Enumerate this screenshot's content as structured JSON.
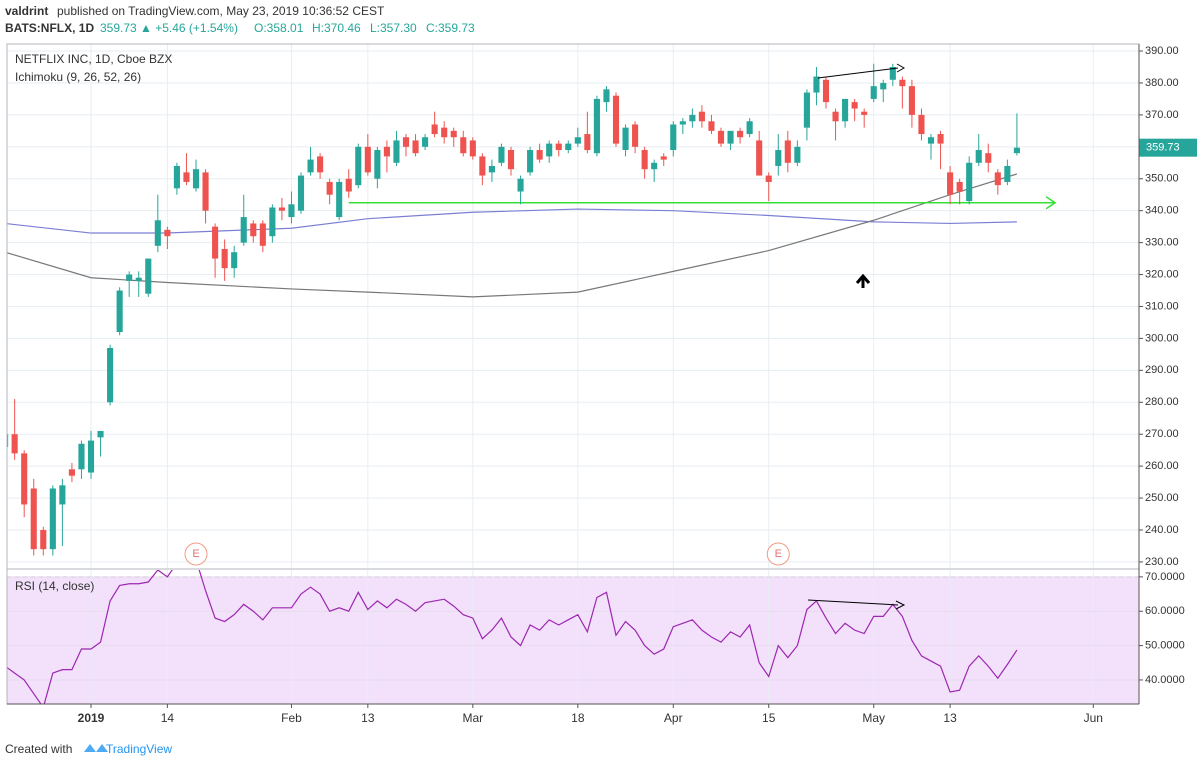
{
  "header": {
    "author": "valdrint",
    "published": "published on TradingView.com, May 23, 2019 10:36:52 CEST",
    "symbol": "BATS:NFLX, 1D",
    "last": "359.73",
    "change": "▲ +5.46 (+1.54%)",
    "ohlc": [
      "O:358.01",
      "H:370.46",
      "L:357.30",
      "C:359.73"
    ]
  },
  "footer": {
    "created": "Created with",
    "brand": "TradingView"
  },
  "chart_data": [
    {
      "type": "candlestick",
      "title": "NETFLIX INC, 1D, Cboe BZX",
      "indicator": "Ichimoku (9, 26, 52, 26)",
      "up_color": "#26a69a",
      "down_color": "#ef5350",
      "grid": true,
      "x": [
        "2018-12-18",
        "2018-12-19",
        "2018-12-20",
        "2018-12-21",
        "2018-12-24",
        "2018-12-26",
        "2018-12-27",
        "2018-12-28",
        "2018-12-31",
        "2019-01-02",
        "2019-01-03",
        "2019-01-04",
        "2019-01-07",
        "2019-01-08",
        "2019-01-09",
        "2019-01-10",
        "2019-01-11",
        "2019-01-14",
        "2019-01-15",
        "2019-01-16",
        "2019-01-17",
        "2019-01-18",
        "2019-01-22",
        "2019-01-23",
        "2019-01-24",
        "2019-01-25",
        "2019-01-28",
        "2019-01-29",
        "2019-01-30",
        "2019-01-31",
        "2019-02-01",
        "2019-02-04",
        "2019-02-05",
        "2019-02-06",
        "2019-02-07",
        "2019-02-08",
        "2019-02-11",
        "2019-02-12",
        "2019-02-13",
        "2019-02-14",
        "2019-02-15",
        "2019-02-19",
        "2019-02-20",
        "2019-02-21",
        "2019-02-22",
        "2019-02-25",
        "2019-02-26",
        "2019-02-27",
        "2019-02-28",
        "2019-03-01",
        "2019-03-04",
        "2019-03-05",
        "2019-03-06",
        "2019-03-07",
        "2019-03-08",
        "2019-03-11",
        "2019-03-12",
        "2019-03-13",
        "2019-03-14",
        "2019-03-15",
        "2019-03-18",
        "2019-03-19",
        "2019-03-20",
        "2019-03-21",
        "2019-03-22",
        "2019-03-25",
        "2019-03-26",
        "2019-03-27",
        "2019-03-28",
        "2019-03-29",
        "2019-04-01",
        "2019-04-02",
        "2019-04-03",
        "2019-04-04",
        "2019-04-05",
        "2019-04-08",
        "2019-04-09",
        "2019-04-10",
        "2019-04-11",
        "2019-04-12",
        "2019-04-15",
        "2019-04-16",
        "2019-04-17",
        "2019-04-18",
        "2019-04-22",
        "2019-04-23",
        "2019-04-24",
        "2019-04-25",
        "2019-04-26",
        "2019-04-29",
        "2019-04-30",
        "2019-05-01",
        "2019-05-02",
        "2019-05-03",
        "2019-05-06",
        "2019-05-07",
        "2019-05-08",
        "2019-05-09",
        "2019-05-10",
        "2019-05-13",
        "2019-05-14",
        "2019-05-15",
        "2019-05-16",
        "2019-05-17",
        "2019-05-20",
        "2019-05-21",
        "2019-05-22"
      ],
      "open": [
        266,
        270,
        264,
        253,
        240,
        234,
        248,
        259,
        259,
        258,
        269,
        280,
        302,
        318,
        318,
        314,
        329,
        334,
        347,
        352,
        347,
        352,
        335,
        328,
        322,
        330,
        336,
        336,
        332,
        341,
        338,
        340,
        352,
        357,
        349,
        338,
        350,
        348,
        360,
        350,
        360,
        355,
        363,
        362,
        360,
        367,
        366,
        365,
        363,
        362,
        357,
        352,
        355,
        359,
        346,
        352,
        359,
        357,
        361,
        359,
        361,
        364,
        358,
        374,
        376,
        359,
        367,
        359,
        353,
        357,
        359,
        367,
        368,
        371,
        368,
        365,
        361,
        365,
        364,
        362,
        351,
        354,
        362,
        355,
        366,
        377,
        381,
        371,
        368,
        374,
        371,
        375,
        378,
        381,
        381,
        379,
        370,
        361,
        364,
        352,
        349,
        343,
        355,
        358,
        352,
        349,
        358.01
      ],
      "high": [
        272,
        281,
        265,
        256,
        241,
        254,
        256,
        261,
        268,
        271,
        271,
        298,
        316,
        321,
        321,
        325,
        345,
        335,
        355,
        358,
        356,
        353,
        336,
        331,
        329,
        345,
        337,
        337,
        342,
        344,
        346,
        352,
        360,
        358,
        350,
        350,
        353,
        361,
        364,
        360,
        362,
        365,
        364,
        364,
        364,
        371,
        368,
        366,
        365,
        363,
        358,
        356,
        361,
        360,
        351,
        360,
        361,
        362,
        362,
        362,
        366,
        371,
        376,
        379,
        377,
        367,
        368,
        360,
        356,
        358,
        368,
        369,
        372,
        373,
        370,
        366,
        365,
        366,
        369,
        365,
        352,
        364,
        365,
        362,
        378,
        385,
        382,
        372,
        375,
        375,
        372,
        386,
        381,
        386,
        382,
        381,
        372,
        364,
        365,
        354,
        350,
        357,
        364,
        361,
        353,
        356,
        370.46
      ],
      "low": [
        262,
        262,
        244,
        232,
        232,
        232,
        235,
        255,
        256,
        256,
        263,
        279,
        301,
        313,
        313,
        313,
        327,
        328,
        345,
        348,
        346,
        336,
        319,
        318,
        319,
        329,
        330,
        327,
        330,
        337,
        336,
        339,
        351,
        350,
        342,
        337,
        344,
        347,
        351,
        347,
        352,
        354,
        357,
        357,
        359,
        363,
        361,
        360,
        357,
        356,
        348,
        349,
        354,
        351,
        342,
        351,
        355,
        355,
        357,
        358,
        360,
        358,
        357,
        371,
        360,
        357,
        358,
        350,
        349,
        354,
        357,
        364,
        366,
        366,
        364,
        360,
        359,
        361,
        363,
        351,
        343,
        351,
        352,
        354,
        362,
        373,
        372,
        362,
        366,
        368,
        366,
        374,
        374,
        379,
        372,
        366,
        362,
        356,
        353,
        342,
        342,
        342,
        354,
        352,
        345,
        348,
        357.3
      ],
      "close": [
        270,
        264,
        248,
        234,
        234,
        253,
        254,
        257,
        267,
        268,
        271,
        297,
        315,
        320,
        319,
        325,
        337,
        332,
        354,
        349,
        353,
        340,
        325,
        322,
        327,
        338,
        332,
        329,
        341,
        340,
        342,
        351,
        356,
        352,
        345,
        349,
        346,
        360,
        352,
        359,
        357,
        362,
        360,
        358,
        363,
        364,
        363,
        363,
        358,
        357,
        351,
        354,
        360,
        353,
        350,
        359,
        356,
        361,
        359,
        361,
        363,
        359,
        375,
        378,
        361,
        366,
        360,
        353,
        355,
        356,
        367,
        368,
        370,
        368,
        365,
        361,
        365,
        363,
        368,
        351,
        349,
        359,
        355,
        360,
        377,
        382,
        374,
        368,
        375,
        372,
        370,
        379,
        380,
        385,
        379,
        370,
        364,
        363,
        361,
        345,
        346,
        355,
        359,
        355,
        348,
        354,
        359.73
      ],
      "overlays": [
        {
          "color": "#7b7fd4",
          "x": [
            "2018-12-18",
            "2019-01-02",
            "2019-01-14",
            "2019-02-01",
            "2019-02-13",
            "2019-03-01",
            "2019-03-18",
            "2019-04-01",
            "2019-04-15",
            "2019-05-01",
            "2019-05-13",
            "2019-05-22"
          ],
          "values": [
            336,
            333,
            333,
            334.5,
            337.5,
            339.5,
            340.5,
            340,
            338.5,
            336.5,
            336,
            336.5
          ]
        },
        {
          "color": "#787878",
          "x": [
            "2018-12-18",
            "2019-01-02",
            "2019-01-14",
            "2019-02-01",
            "2019-02-13",
            "2019-03-01",
            "2019-03-18",
            "2019-04-01",
            "2019-04-15",
            "2019-05-01",
            "2019-05-13",
            "2019-05-22"
          ],
          "values": [
            327,
            319,
            317.5,
            315.5,
            314.5,
            313,
            314.5,
            321,
            327.5,
            337,
            345,
            351.5
          ]
        }
      ],
      "support": {
        "level": 342.5,
        "from": "2019-02-11",
        "to": "2019-05-28",
        "color": "#34e034"
      },
      "events": [
        {
          "x": "2019-01-17",
          "label": "E"
        },
        {
          "x": "2019-04-16",
          "label": "E"
        }
      ],
      "xlim": [
        "2018-12-18",
        "2019-06-10"
      ],
      "xticks": [
        {
          "value": "2019-01-02",
          "label": "2019"
        },
        {
          "value": "2019-01-14",
          "label": "14"
        },
        {
          "value": "2019-02-01",
          "label": "Feb"
        },
        {
          "value": "2019-02-13",
          "label": "13"
        },
        {
          "value": "2019-03-01",
          "label": "Mar"
        },
        {
          "value": "2019-03-18",
          "label": "18"
        },
        {
          "value": "2019-04-01",
          "label": "Apr"
        },
        {
          "value": "2019-04-15",
          "label": "15"
        },
        {
          "value": "2019-05-01",
          "label": "May"
        },
        {
          "value": "2019-05-13",
          "label": "13"
        },
        {
          "value": "2019-06-03",
          "label": "Jun"
        }
      ],
      "ylim": [
        228.1,
        392.2
      ],
      "yticks": [
        {
          "value": 230,
          "label": "230.00"
        },
        {
          "value": 240,
          "label": "240.00"
        },
        {
          "value": 250,
          "label": "250.00"
        },
        {
          "value": 260,
          "label": "260.00"
        },
        {
          "value": 270,
          "label": "270.00"
        },
        {
          "value": 280,
          "label": "280.00"
        },
        {
          "value": 290,
          "label": "290.00"
        },
        {
          "value": 300,
          "label": "300.00"
        },
        {
          "value": 310,
          "label": "310.00"
        },
        {
          "value": 320,
          "label": "320.00"
        },
        {
          "value": 330,
          "label": "330.00"
        },
        {
          "value": 340,
          "label": "340.00"
        },
        {
          "value": 350,
          "label": "350.00"
        },
        {
          "value": 360,
          "label": "360.00"
        },
        {
          "value": 370,
          "label": "370.00"
        },
        {
          "value": 380,
          "label": "380.00"
        },
        {
          "value": 390,
          "label": "390.00"
        }
      ]
    },
    {
      "type": "line",
      "title": "RSI (14, close)",
      "color": "#9c27b0",
      "band": [
        30,
        70
      ],
      "band_color": "#f3e0fb",
      "values": [
        44,
        42,
        40,
        36,
        32,
        42,
        43,
        43,
        49,
        49,
        51,
        63,
        67.5,
        68,
        68,
        68.5,
        72,
        70,
        74,
        73,
        75,
        66,
        58,
        57,
        59,
        62,
        60,
        57.5,
        61,
        61,
        61,
        65,
        67,
        65,
        60,
        61,
        60,
        65.5,
        60.5,
        63,
        61,
        63.5,
        62,
        60,
        62.5,
        63,
        63.5,
        61.5,
        59,
        58,
        52,
        54.5,
        58,
        52.5,
        50,
        56,
        54.5,
        57.5,
        56,
        57.5,
        59,
        54,
        64,
        65.5,
        53,
        57,
        54.5,
        50,
        47.5,
        49,
        55.5,
        56.5,
        57.5,
        54.5,
        52.5,
        51,
        54,
        52.5,
        56,
        45,
        41,
        50,
        46.5,
        50,
        60.5,
        63,
        58,
        53.5,
        56.5,
        54.5,
        53.5,
        58.5,
        58.5,
        62,
        58.5,
        51.5,
        47,
        45.5,
        44,
        36.5,
        37,
        44,
        47,
        44,
        40.5,
        44.5,
        48.7
      ],
      "ylim": [
        33,
        72
      ],
      "yticks": [
        {
          "value": 40,
          "label": "40.0000"
        },
        {
          "value": 50,
          "label": "50.0000"
        },
        {
          "value": 60,
          "label": "60.0000"
        },
        {
          "value": 70,
          "label": "70.0000"
        }
      ]
    }
  ]
}
